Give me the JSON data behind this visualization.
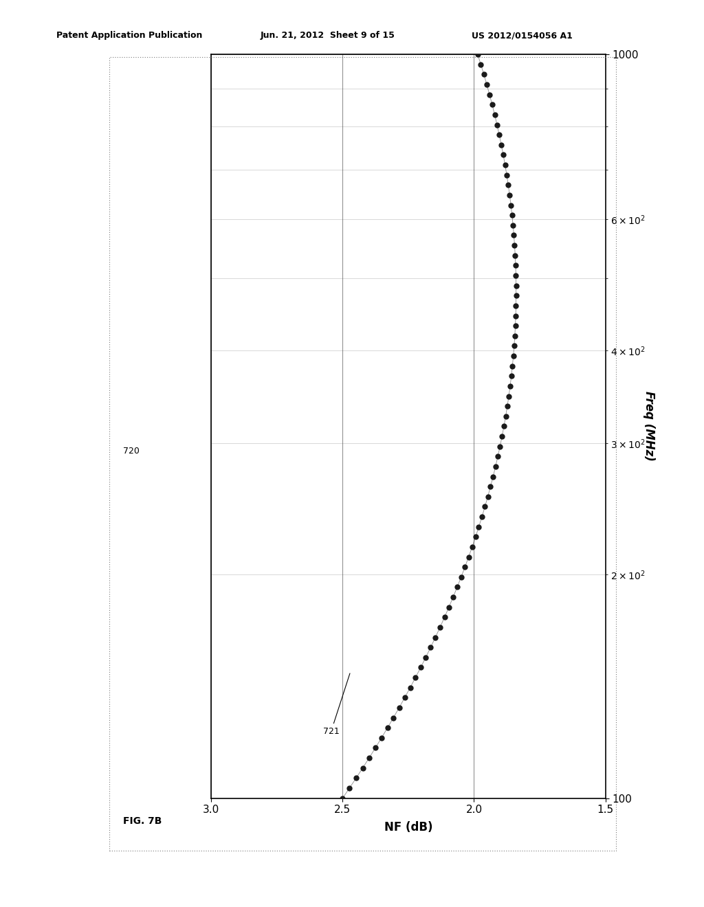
{
  "header_left": "Patent Application Publication",
  "header_mid": "Jun. 21, 2012  Sheet 9 of 15",
  "header_right": "US 2012/0154056 A1",
  "fig_label": "FIG. 7B",
  "fig_number": "720",
  "curve_label": "721",
  "xlabel": "NF (dB)",
  "ylabel": "Freq (MHz)",
  "xlim_left": 3.0,
  "xlim_right": 1.5,
  "ylog_min": 100,
  "ylog_max": 1000,
  "background_color": "#ffffff",
  "curve_color": "#1a1a1a",
  "grid_color": "#555555"
}
